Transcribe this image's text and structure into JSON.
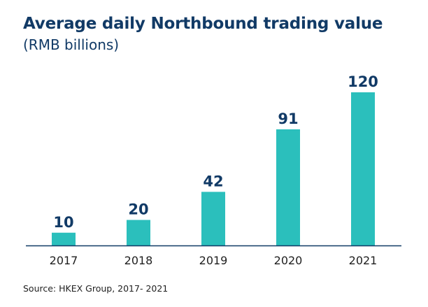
{
  "chart_data": {
    "type": "bar",
    "title": "Average daily Northbound trading value",
    "subtitle": "(RMB billions)",
    "categories": [
      "2017",
      "2018",
      "2019",
      "2020",
      "2021"
    ],
    "values": [
      10,
      20,
      42,
      91,
      120
    ],
    "value_labels": [
      "10",
      "20",
      "42",
      "91",
      "120"
    ],
    "xlabel": "",
    "ylabel": "",
    "ylim": [
      0,
      120
    ],
    "grid": false,
    "legend": "none",
    "bar_color": "#2bbfbc",
    "label_color": "#113a66",
    "axis_color": "#113a66"
  },
  "source": "Source: HKEX Group, 2017- 2021"
}
